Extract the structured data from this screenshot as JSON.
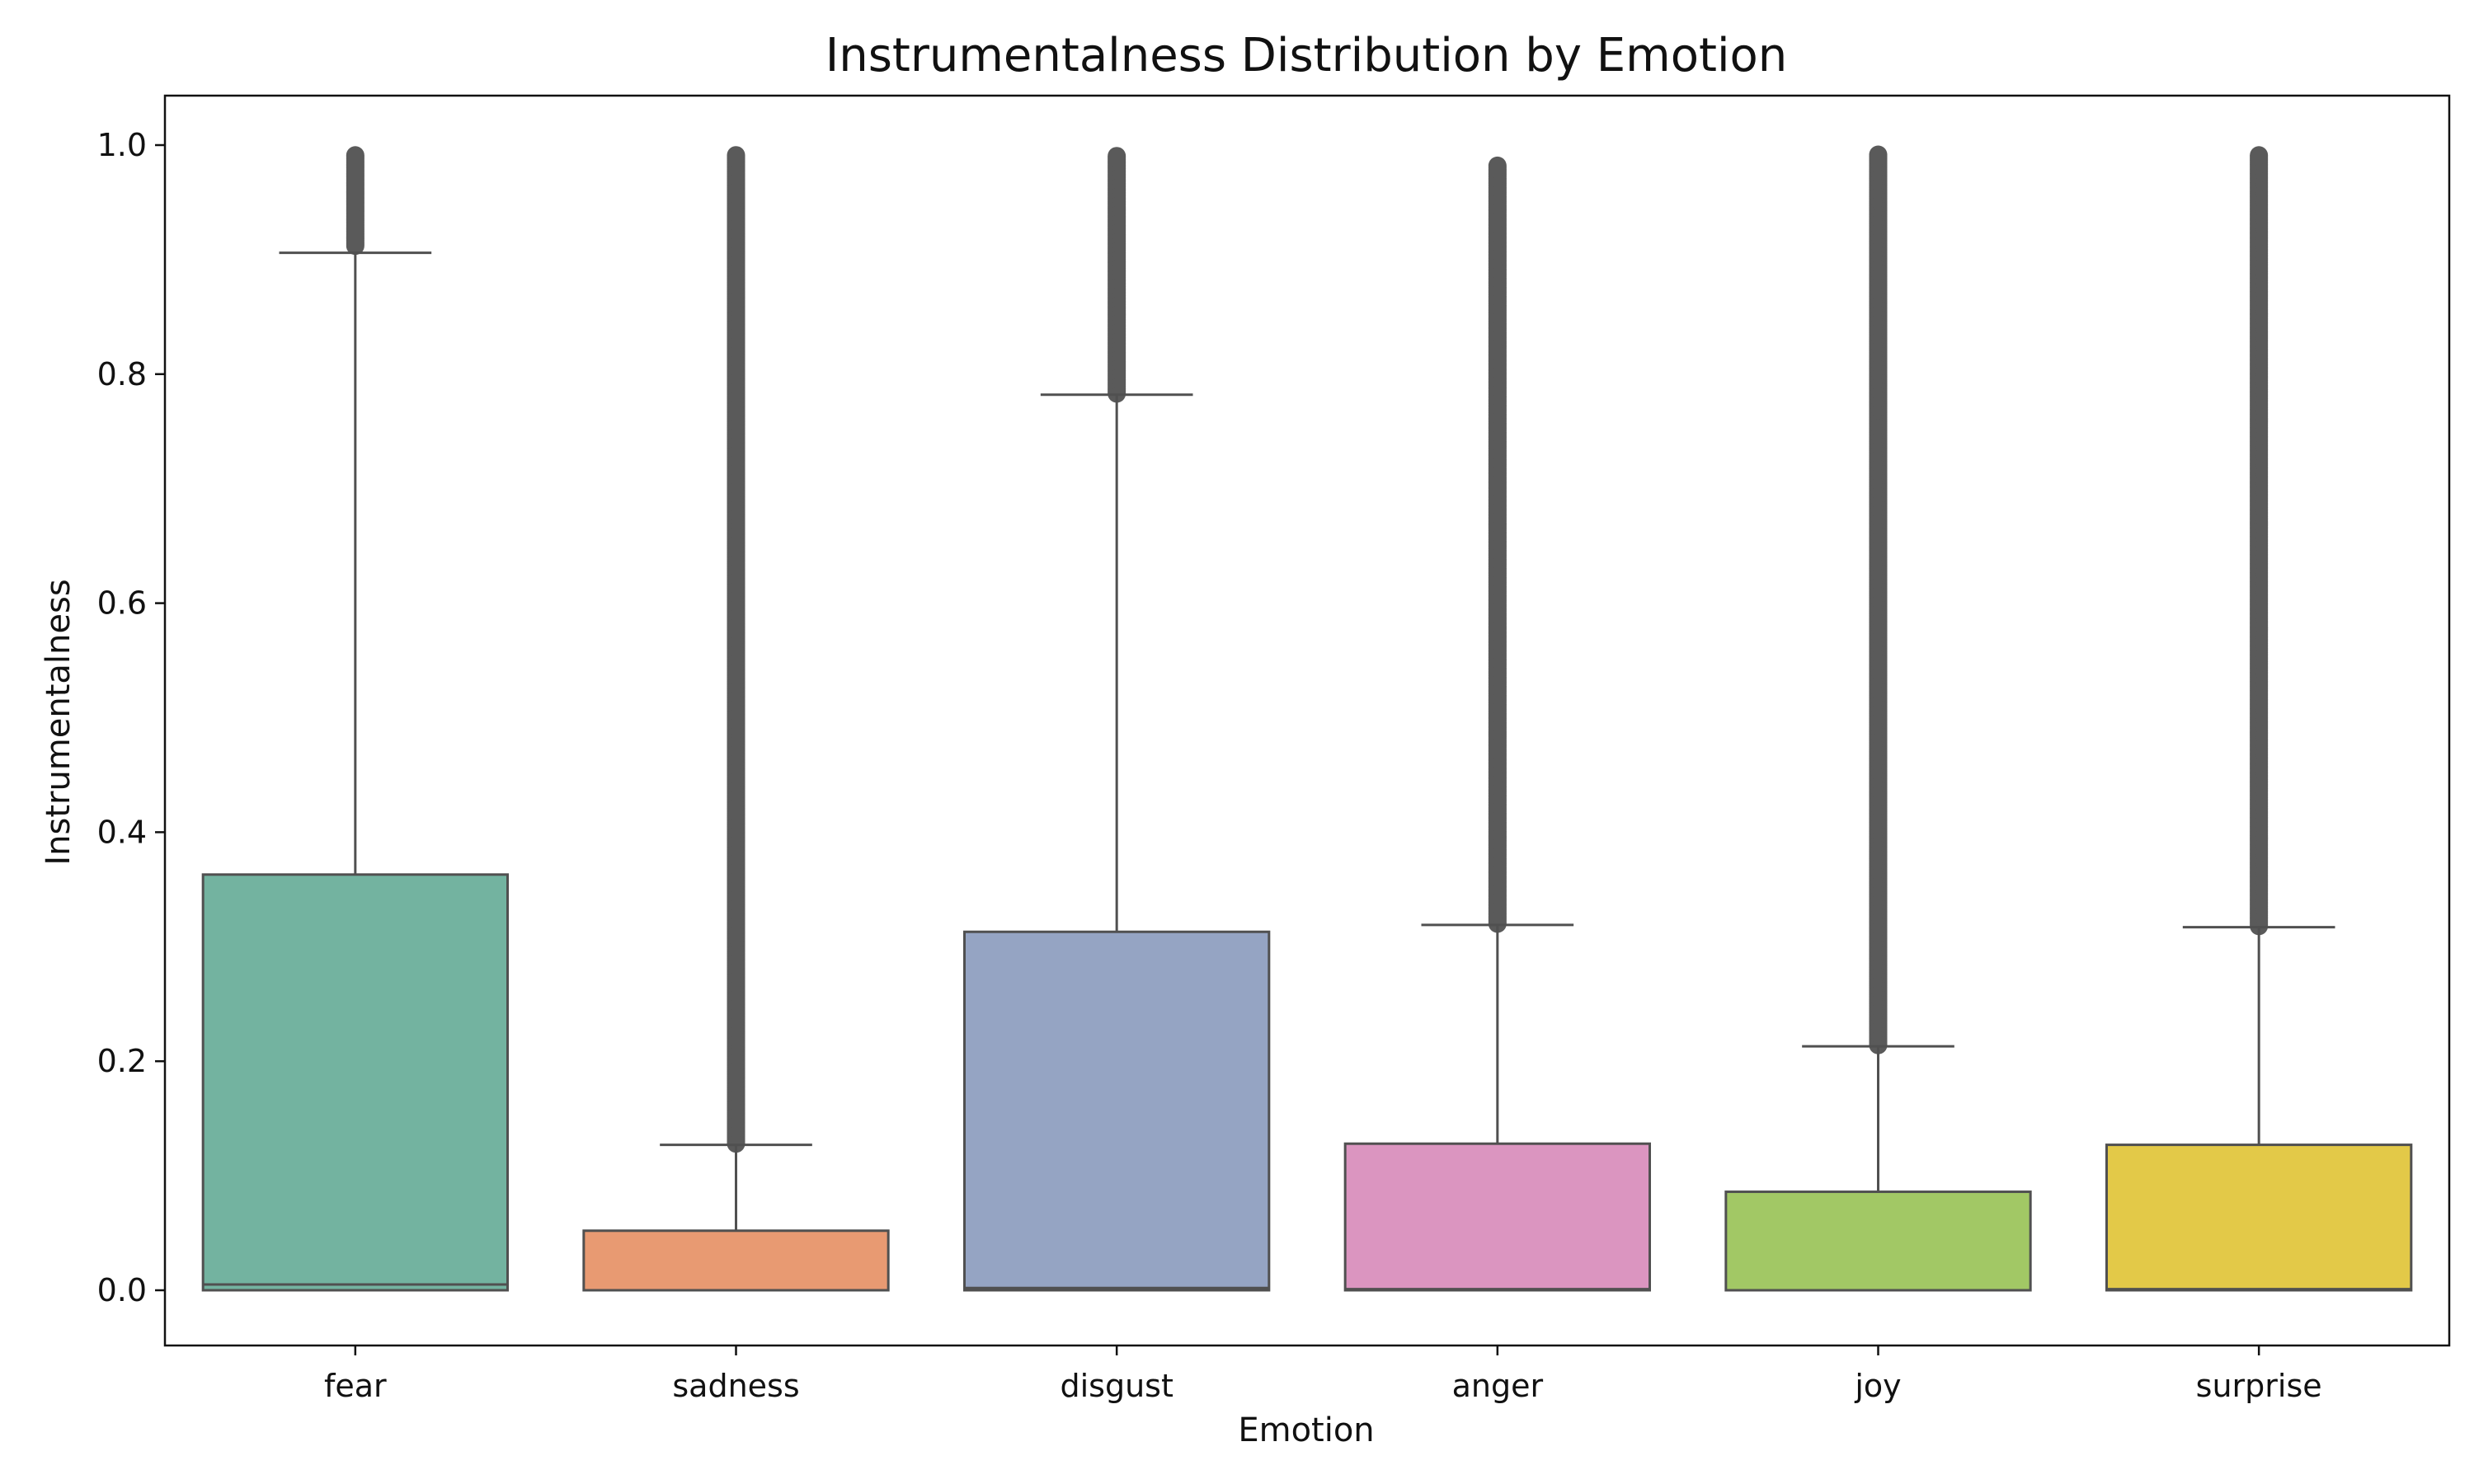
{
  "chart_data": {
    "type": "box",
    "title": "Instrumentalness Distribution by Emotion",
    "xlabel": "Emotion",
    "ylabel": "Instrumentalness",
    "ylim": [
      -0.05,
      1.04
    ],
    "yticks": [
      "0.0",
      "0.2",
      "0.4",
      "0.6",
      "0.8",
      "1.0"
    ],
    "grid": false,
    "legend": "none",
    "categories": [
      "fear",
      "sadness",
      "disgust",
      "anger",
      "joy",
      "surprise"
    ],
    "boxes": [
      {
        "category": "fear",
        "color": "#73b3a0",
        "q1": 0.0,
        "median": 0.005,
        "q3": 0.363,
        "whisker_low": 0.0,
        "whisker_high": 0.906,
        "outliers_min": 0.912,
        "outliers_max": 0.992
      },
      {
        "category": "sadness",
        "color": "#e89a72",
        "q1": 0.0,
        "median": 0.0,
        "q3": 0.052,
        "whisker_low": 0.0,
        "whisker_high": 0.127,
        "outliers_min": 0.128,
        "outliers_max": 0.992
      },
      {
        "category": "disgust",
        "color": "#95a4c3",
        "q1": 0.0,
        "median": 0.002,
        "q3": 0.313,
        "whisker_low": 0.0,
        "whisker_high": 0.782,
        "outliers_min": 0.783,
        "outliers_max": 0.991
      },
      {
        "category": "anger",
        "color": "#db95c0",
        "q1": 0.0,
        "median": 0.001,
        "q3": 0.128,
        "whisker_low": 0.0,
        "whisker_high": 0.319,
        "outliers_min": 0.32,
        "outliers_max": 0.983
      },
      {
        "category": "joy",
        "color": "#a2c865",
        "q1": 0.0,
        "median": 0.0,
        "q3": 0.086,
        "whisker_low": 0.0,
        "whisker_high": 0.213,
        "outliers_min": 0.214,
        "outliers_max": 0.992
      },
      {
        "category": "surprise",
        "color": "#e3c948",
        "q1": 0.0,
        "median": 0.001,
        "q3": 0.127,
        "whisker_low": 0.0,
        "whisker_high": 0.317,
        "outliers_min": 0.318,
        "outliers_max": 0.992
      }
    ]
  },
  "colors": {
    "axis": "#111111",
    "box_edge": "#505050",
    "outlier": "#5a5a5a"
  }
}
